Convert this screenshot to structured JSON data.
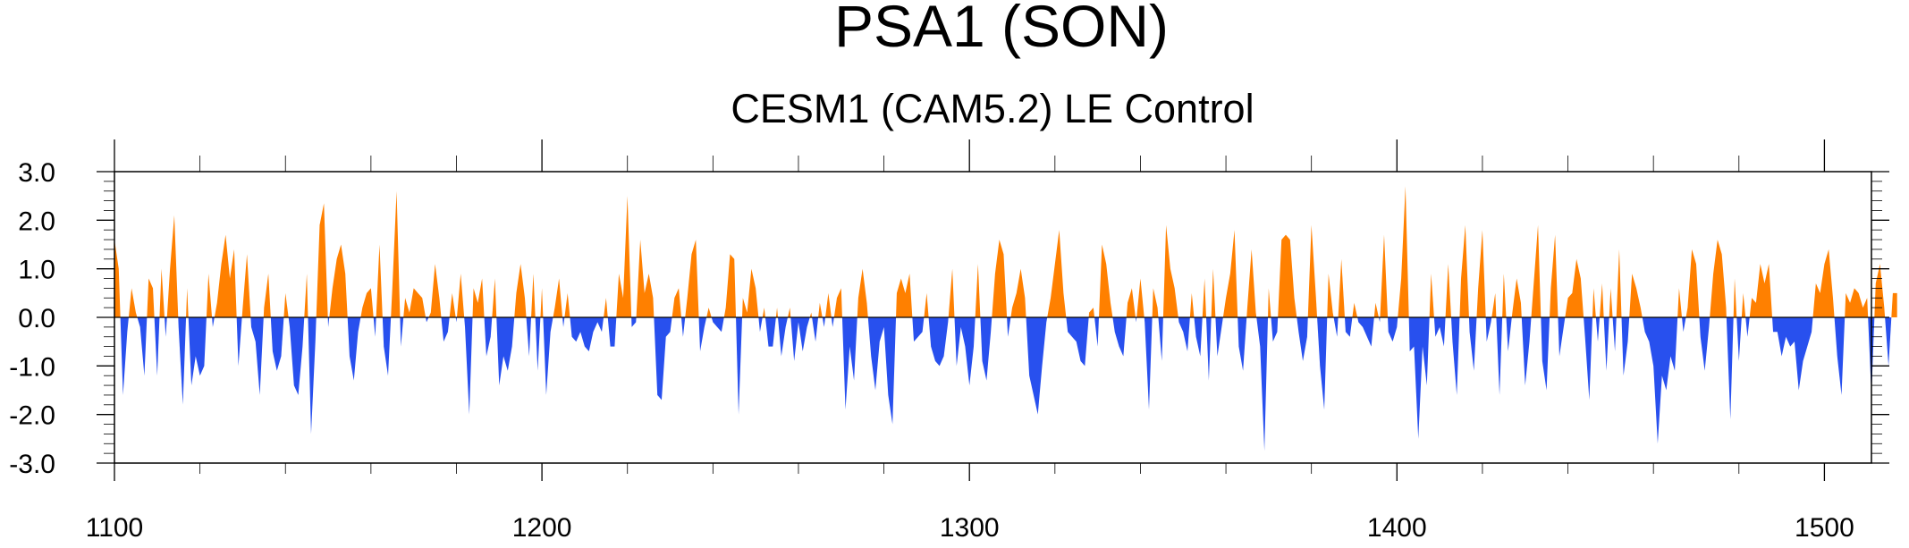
{
  "chart_data": {
    "type": "area",
    "title": "PSA1 (SON)",
    "subtitle": "CESM1 (CAM5.2) LE Control",
    "xlabel": "",
    "ylabel": "",
    "xlim": [
      1100,
      1511
    ],
    "ylim": [
      -3.0,
      3.0
    ],
    "x_ticks": [
      1100,
      1200,
      1300,
      1400,
      1500
    ],
    "y_ticks": [
      "3.0",
      "2.0",
      "1.0",
      "0.0",
      "-1.0",
      "-2.0",
      "-3.0"
    ],
    "y_tick_values": [
      3,
      2,
      1,
      0,
      -1,
      -2,
      -3
    ],
    "grid": false,
    "positive_color": "#ff8000",
    "negative_color": "#2850ee",
    "x_start": 1100,
    "values": [
      1.6,
      1.0,
      -1.6,
      -0.3,
      0.6,
      0.1,
      -0.2,
      -1.2,
      0.8,
      0.6,
      -1.2,
      1.0,
      -0.4,
      1.0,
      2.1,
      -0.2,
      -1.8,
      0.6,
      -1.4,
      -0.8,
      -1.2,
      -1.0,
      0.9,
      -0.2,
      0.3,
      1.1,
      1.7,
      0.8,
      1.4,
      -1.0,
      0.2,
      1.3,
      -0.2,
      -0.5,
      -1.6,
      0.2,
      0.9,
      -0.7,
      -1.1,
      -0.8,
      0.5,
      -0.2,
      -1.4,
      -1.6,
      -0.6,
      0.9,
      -2.4,
      -0.5,
      1.9,
      2.35,
      -0.2,
      0.6,
      1.2,
      1.5,
      0.9,
      -0.8,
      -1.3,
      -0.3,
      0.2,
      0.5,
      0.6,
      -0.4,
      1.5,
      -0.6,
      -1.2,
      0.6,
      2.6,
      -0.6,
      0.4,
      0.1,
      0.6,
      0.5,
      0.4,
      -0.1,
      0.1,
      1.1,
      0.4,
      -0.5,
      -0.3,
      0.5,
      -0.1,
      0.9,
      -0.2,
      -2.0,
      0.6,
      0.3,
      0.8,
      -0.8,
      -0.4,
      0.8,
      -1.4,
      -0.8,
      -1.1,
      -0.6,
      0.5,
      1.1,
      0.4,
      -0.8,
      0.9,
      -1.1,
      0.6,
      -1.6,
      -0.3,
      0.2,
      0.8,
      -0.2,
      0.5,
      -0.4,
      -0.5,
      -0.3,
      -0.6,
      -0.7,
      -0.3,
      -0.1,
      -0.3,
      0.4,
      -0.6,
      -0.6,
      0.9,
      0.4,
      2.5,
      -0.2,
      -0.1,
      1.6,
      0.5,
      0.9,
      0.4,
      -1.6,
      -1.7,
      -0.4,
      -0.3,
      0.4,
      0.6,
      -0.4,
      0.4,
      1.3,
      1.6,
      -0.7,
      -0.2,
      0.2,
      -0.1,
      -0.2,
      -0.3,
      0.2,
      1.3,
      1.2,
      -2.0,
      0.4,
      0.1,
      1.0,
      0.6,
      -0.3,
      0.2,
      -0.6,
      -0.6,
      0.2,
      -0.8,
      -0.2,
      0.2,
      -0.9,
      -0.1,
      -0.7,
      -0.2,
      0.1,
      -0.5,
      0.3,
      -0.2,
      0.5,
      -0.2,
      0.4,
      0.6,
      -1.9,
      -0.6,
      -1.3,
      0.4,
      1.0,
      0.3,
      -0.8,
      -1.5,
      -0.5,
      -0.2,
      -1.6,
      -2.2,
      0.5,
      0.8,
      0.5,
      0.9,
      -0.5,
      -0.4,
      -0.3,
      0.5,
      -0.6,
      -0.9,
      -1.0,
      -0.8,
      -0.1,
      1.0,
      -1.0,
      -0.2,
      -0.6,
      -1.4,
      -0.6,
      1.1,
      -0.9,
      -1.3,
      -0.3,
      0.9,
      1.6,
      1.3,
      -0.4,
      0.2,
      0.5,
      1.0,
      0.4,
      -1.2,
      -1.6,
      -2.0,
      -1.0,
      -0.1,
      0.4,
      1.1,
      1.8,
      0.5,
      -0.3,
      -0.4,
      -0.5,
      -0.9,
      -1.0,
      0.1,
      0.2,
      -0.6,
      1.5,
      1.1,
      0.3,
      -0.3,
      -0.6,
      -0.8,
      0.3,
      0.6,
      -0.1,
      0.8,
      -0.1,
      -1.9,
      0.6,
      0.2,
      -0.9,
      1.9,
      1.0,
      0.6,
      -0.1,
      -0.3,
      -0.7,
      0.5,
      -0.4,
      -0.8,
      0.8,
      -1.3,
      1.0,
      -0.8,
      -0.2,
      0.4,
      0.9,
      1.8,
      -0.6,
      -1.1,
      0.2,
      1.4,
      0.1,
      -0.6,
      -2.75,
      0.6,
      -0.5,
      -0.3,
      1.6,
      1.7,
      1.6,
      0.4,
      -0.3,
      -0.9,
      -0.4,
      1.9,
      0.5,
      -1.0,
      -1.9,
      0.9,
      0.1,
      -0.4,
      1.2,
      -0.3,
      -0.4,
      0.3,
      -0.1,
      -0.2,
      -0.4,
      -0.6,
      0.3,
      -0.1,
      1.7,
      -0.3,
      -0.5,
      -0.2,
      0.8,
      2.7,
      -0.7,
      -0.6,
      -2.5,
      -0.6,
      -1.4,
      0.9,
      -0.4,
      -0.2,
      -0.6,
      1.1,
      -0.5,
      -1.6,
      0.8,
      1.9,
      -0.3,
      -1.1,
      0.6,
      1.8,
      -0.5,
      -0.1,
      0.5,
      -1.6,
      0.9,
      -0.7,
      0.1,
      0.8,
      0.3,
      -1.4,
      -0.5,
      0.7,
      1.9,
      -0.9,
      -1.5,
      0.6,
      1.7,
      -0.8,
      -0.2,
      0.4,
      0.5,
      1.2,
      0.8,
      -0.4,
      -1.7,
      0.6,
      -0.5,
      0.7,
      -1.1,
      0.6,
      -0.7,
      1.4,
      -1.2,
      -0.5,
      0.9,
      0.6,
      0.2,
      -0.3,
      -0.5,
      -1.0,
      -2.6,
      -1.2,
      -1.5,
      -0.8,
      -1.1,
      0.6,
      -0.3,
      0.2,
      1.4,
      1.1,
      -0.4,
      -1.1,
      -0.2,
      0.9,
      1.6,
      1.3,
      0.2,
      -2.1,
      0.8,
      -0.9,
      0.5,
      -0.4,
      0.4,
      0.3,
      1.1,
      0.7,
      1.1,
      -0.3,
      -0.3,
      -0.8,
      -0.4,
      -0.6,
      -0.5,
      -1.5,
      -0.9,
      -0.6,
      -0.3,
      0.7,
      0.5,
      1.1,
      1.4,
      0.4,
      -0.8,
      -1.6,
      0.5,
      0.3,
      0.6,
      0.5,
      0.2,
      0.4,
      -1.6,
      0.7,
      1.1,
      0.2,
      -1.0,
      0.5,
      0.5
    ]
  }
}
